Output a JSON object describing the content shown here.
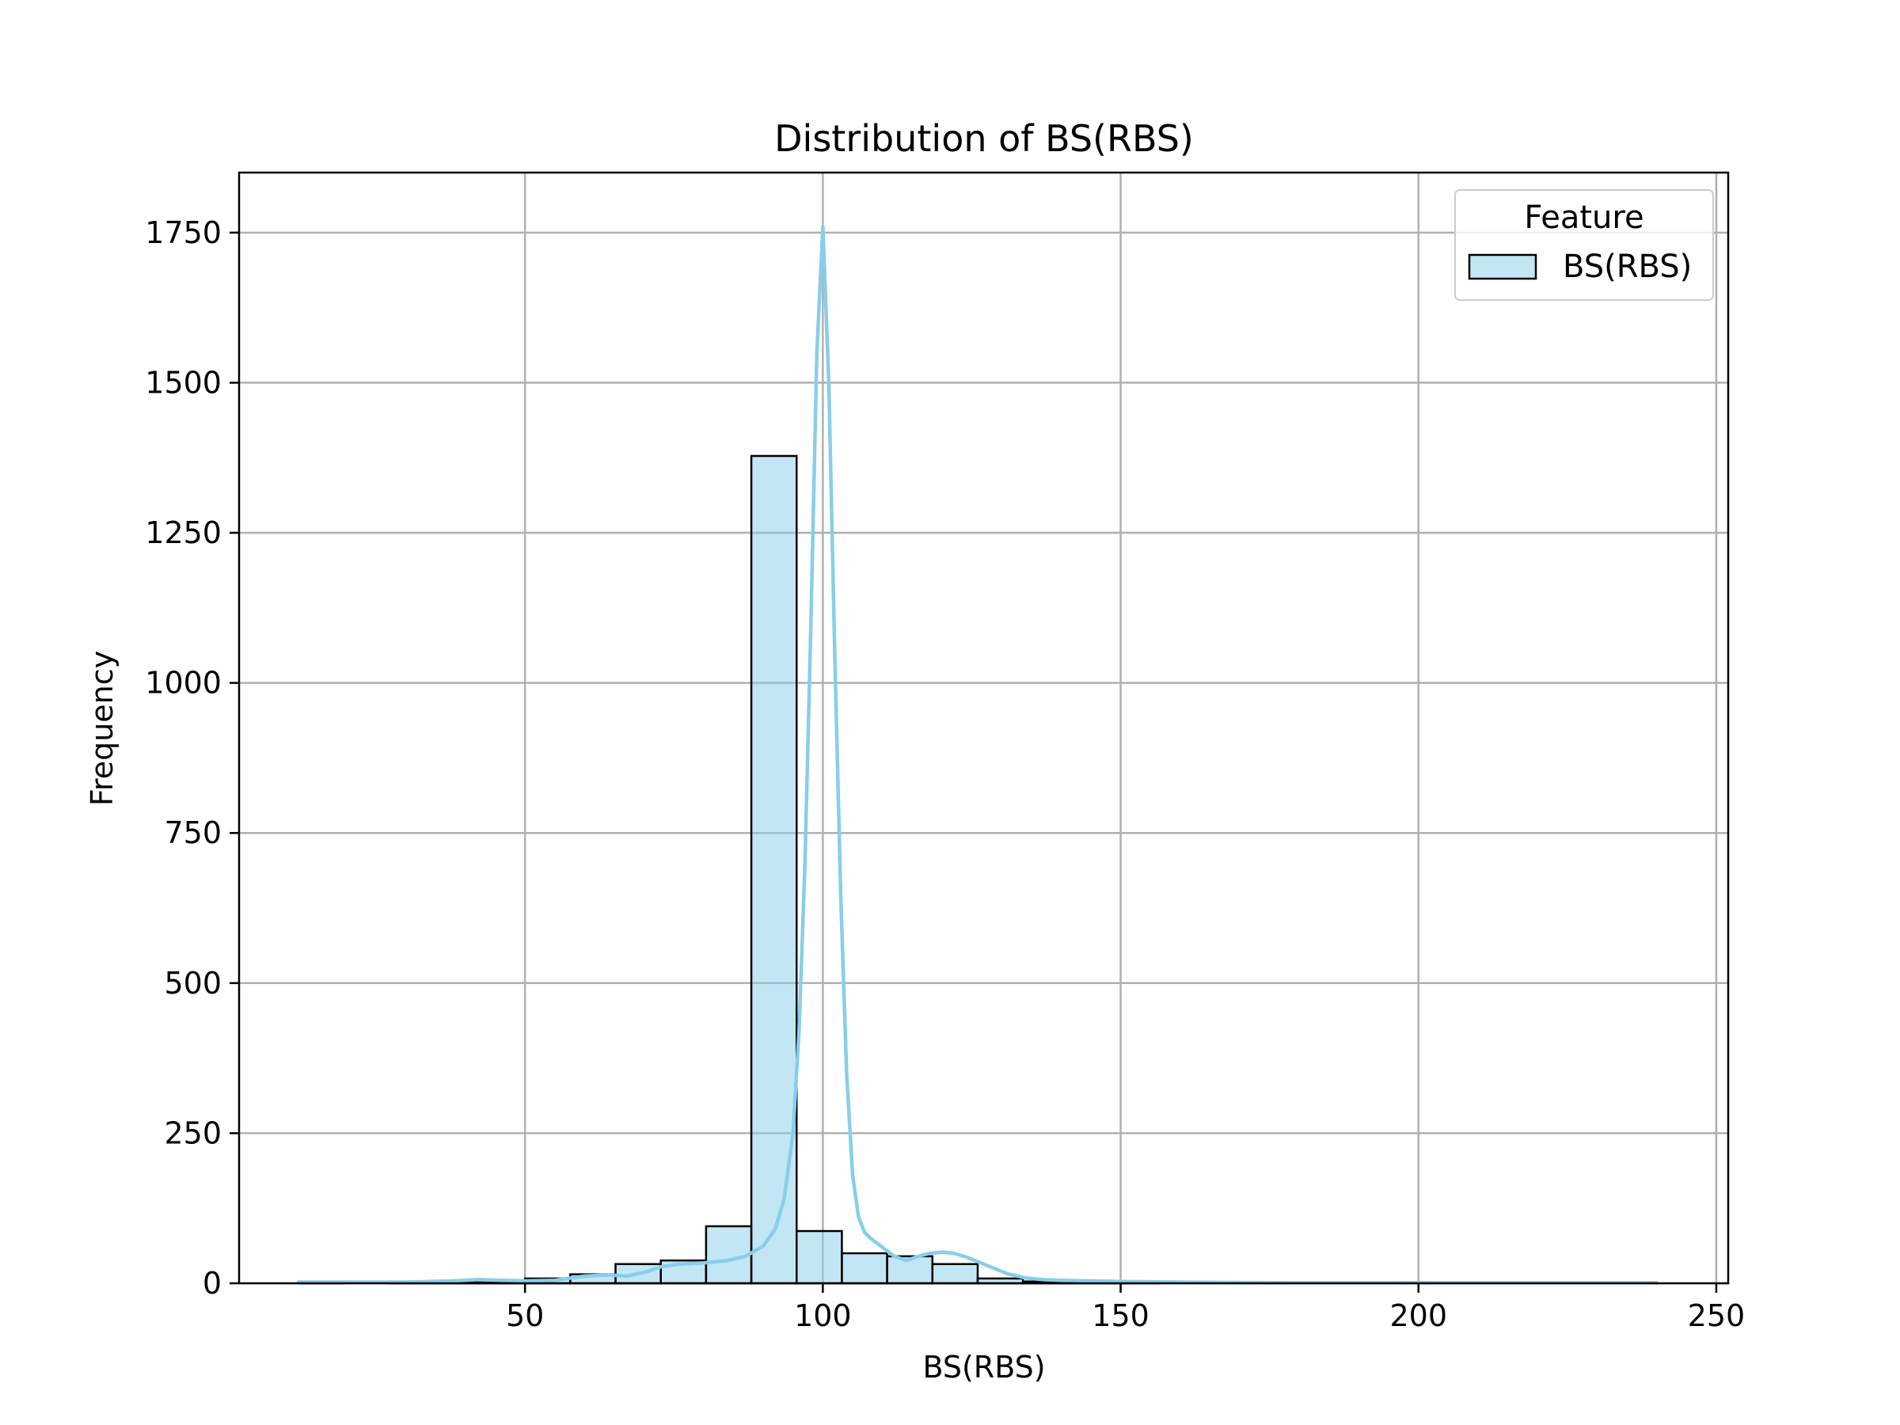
{
  "chart_data": {
    "type": "histogram",
    "title": "Distribution of BS(RBS)",
    "xlabel": "BS(RBS)",
    "ylabel": "Frequency",
    "xlim": [
      2,
      252
    ],
    "ylim": [
      0,
      1850
    ],
    "xticks": [
      50,
      100,
      150,
      200,
      250
    ],
    "yticks": [
      0,
      250,
      500,
      750,
      1000,
      1250,
      1500,
      1750
    ],
    "grid": true,
    "legend": {
      "title": "Feature",
      "position": "top-right",
      "entries": [
        "BS(RBS)"
      ]
    },
    "colors": {
      "bar_fill": "#87ceeb",
      "bar_fill_opacity": 0.5,
      "bar_edge": "#000000",
      "kde_line": "#87ceeb",
      "grid": "#b0b0b0"
    },
    "bins": {
      "edges": [
        12,
        19.6,
        27.2,
        34.8,
        42.4,
        50,
        57.6,
        65.2,
        72.8,
        80.4,
        88,
        95.6,
        103.2,
        110.8,
        118.4,
        126,
        133.6,
        141.2,
        148.8,
        156.4,
        164,
        171.6,
        179.2,
        186.8,
        194.4,
        202,
        209.6,
        217.2,
        224.8,
        232.4,
        240
      ],
      "counts": [
        2,
        0,
        1,
        3,
        2,
        8,
        15,
        32,
        38,
        95,
        1378,
        87,
        50,
        45,
        32,
        8,
        3,
        2,
        1,
        0,
        0,
        0,
        0,
        0,
        0,
        0,
        0,
        0,
        0,
        1
      ]
    },
    "series": [
      {
        "kind": "kde",
        "x": [
          12,
          20,
          30,
          38,
          42,
          46,
          50,
          55,
          60,
          64,
          67,
          70,
          73,
          76,
          80,
          84,
          87,
          90,
          92,
          93.5,
          95,
          96,
          97,
          98,
          99,
          100,
          101,
          102,
          103,
          104,
          105,
          106,
          107,
          108,
          110,
          112,
          114,
          116,
          118,
          120,
          122,
          124,
          126,
          128,
          131,
          134,
          137,
          140,
          145,
          150,
          160,
          175,
          200,
          220,
          240
        ],
        "y": [
          2,
          2,
          2,
          4,
          6,
          5,
          4,
          5,
          12,
          14,
          12,
          18,
          28,
          32,
          34,
          38,
          45,
          62,
          90,
          140,
          250,
          420,
          700,
          1100,
          1550,
          1760,
          1500,
          1050,
          650,
          350,
          180,
          110,
          85,
          75,
          60,
          45,
          38,
          45,
          50,
          52,
          50,
          44,
          36,
          28,
          16,
          9,
          6,
          5,
          4,
          3,
          2,
          1,
          1,
          1,
          1
        ]
      }
    ]
  }
}
